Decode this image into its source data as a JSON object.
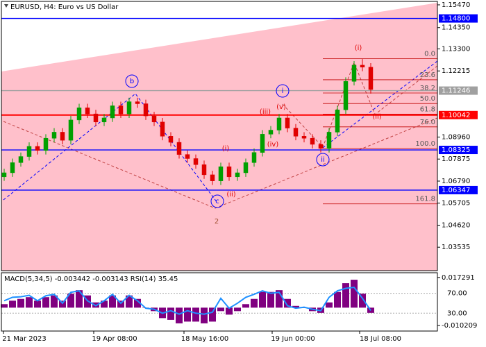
{
  "chart_data": {
    "type": "candlestick",
    "title": "EURUSD, H4:  Euro vs US Dollar",
    "ylim": [
      1.0238,
      1.1564
    ],
    "yticks": [
      {
        "value": 1.1547,
        "label": "1.15470"
      },
      {
        "value": 1.1435,
        "label": "1.14350"
      },
      {
        "value": 1.133,
        "label": "1.13300"
      },
      {
        "value": 1.12215,
        "label": "1.12215"
      },
      {
        "value": 1.0896,
        "label": "1.08960"
      },
      {
        "value": 1.07875,
        "label": "1.07875"
      },
      {
        "value": 1.0679,
        "label": "1.06790"
      },
      {
        "value": 1.05705,
        "label": "1.05705"
      },
      {
        "value": 1.0462,
        "label": "1.04620"
      },
      {
        "value": 1.03535,
        "label": "1.03535"
      }
    ],
    "time_labels": [
      "21 Mar 2023",
      "19 Apr 08:00",
      "18 May 16:00",
      "19 Jun 00:00",
      "18 Jul 08:00"
    ],
    "up_color": "#00a000",
    "down_color": "#e00000",
    "open": [
      1.07,
      1.072,
      1.077,
      1.08,
      1.085,
      1.083,
      1.089,
      1.092,
      1.088,
      1.098,
      1.104,
      1.101,
      1.097,
      1.099,
      1.105,
      1.101,
      1.107,
      1.106,
      1.1,
      1.097,
      1.09,
      1.087,
      1.081,
      1.079,
      1.076,
      1.071,
      1.068,
      1.075,
      1.07,
      1.072,
      1.077,
      1.082,
      1.091,
      1.093,
      1.099,
      1.094,
      1.09,
      1.089,
      1.086,
      1.084,
      1.092,
      1.103,
      1.117,
      1.125,
      1.124
    ],
    "high": [
      1.074,
      1.079,
      1.082,
      1.087,
      1.087,
      1.091,
      1.094,
      1.094,
      1.1,
      1.106,
      1.106,
      1.103,
      1.101,
      1.107,
      1.107,
      1.109,
      1.109,
      1.108,
      1.102,
      1.099,
      1.092,
      1.089,
      1.083,
      1.081,
      1.078,
      1.073,
      1.077,
      1.077,
      1.074,
      1.079,
      1.084,
      1.093,
      1.095,
      1.101,
      1.101,
      1.096,
      1.092,
      1.091,
      1.088,
      1.094,
      1.105,
      1.119,
      1.127,
      1.128,
      1.126
    ],
    "low": [
      1.068,
      1.07,
      1.075,
      1.078,
      1.081,
      1.081,
      1.087,
      1.086,
      1.086,
      1.096,
      1.099,
      1.095,
      1.095,
      1.097,
      1.099,
      1.099,
      1.104,
      1.098,
      1.095,
      1.088,
      1.085,
      1.079,
      1.077,
      1.074,
      1.069,
      1.066,
      1.066,
      1.068,
      1.068,
      1.07,
      1.075,
      1.08,
      1.089,
      1.091,
      1.092,
      1.088,
      1.087,
      1.084,
      1.082,
      1.082,
      1.09,
      1.101,
      1.115,
      1.122,
      1.111
    ],
    "close": [
      1.072,
      1.077,
      1.08,
      1.085,
      1.083,
      1.089,
      1.092,
      1.088,
      1.098,
      1.104,
      1.101,
      1.097,
      1.099,
      1.105,
      1.101,
      1.107,
      1.106,
      1.1,
      1.097,
      1.09,
      1.087,
      1.081,
      1.079,
      1.076,
      1.071,
      1.068,
      1.075,
      1.07,
      1.072,
      1.077,
      1.082,
      1.091,
      1.093,
      1.099,
      1.094,
      1.09,
      1.089,
      1.086,
      1.084,
      1.092,
      1.103,
      1.117,
      1.125,
      1.124,
      1.113
    ],
    "levels": [
      {
        "value": 1.148,
        "label": "1.14800",
        "color": "#0000ff"
      },
      {
        "value": 1.11246,
        "label": "1.11246",
        "color": "#a0a0a0"
      },
      {
        "value": 1.10042,
        "label": "1.10042",
        "color": "#ff0000"
      },
      {
        "value": 1.08325,
        "label": "1.08325",
        "color": "#0000ff"
      },
      {
        "value": 1.06347,
        "label": "1.06347",
        "color": "#0000ff"
      }
    ],
    "fibonacci": {
      "ratios": [
        "0.0",
        "23.6",
        "38.2",
        "50.0",
        "61.8",
        "76.0",
        "100.0",
        "161.8"
      ],
      "prices": [
        1.1282,
        1.1178,
        1.1113,
        1.1061,
        1.1009,
        1.0946,
        1.084,
        1.0567
      ],
      "color": "#c00000"
    },
    "wave_labels": [
      {
        "text": "b",
        "color": "#0000ff",
        "circled": true
      },
      {
        "text": "i",
        "color": "#0000ff",
        "circled": true
      },
      {
        "text": "ii",
        "color": "#0000ff",
        "circled": true
      },
      {
        "text": "c",
        "color": "#0000ff",
        "circled": true
      },
      {
        "text": "(i)",
        "color": "#e00000",
        "circled": false
      },
      {
        "text": "(ii)",
        "color": "#e00000",
        "circled": false
      },
      {
        "text": "(iii)",
        "color": "#e00000",
        "circled": false
      },
      {
        "text": "(iv)",
        "color": "#e00000",
        "circled": false
      },
      {
        "text": "(v)",
        "color": "#e00000",
        "circled": false
      },
      {
        "text": "(i)",
        "color": "#e00000",
        "circled": false
      },
      {
        "text": "(ii)",
        "color": "#e00000",
        "circled": false
      },
      {
        "text": "2",
        "color": "#a05030",
        "circled": false
      }
    ],
    "indicator_text": "MACD(5,34,5) -0.003442 -0.003143 RSI(14) 35.45",
    "macd": [
      0.002,
      0.004,
      0.005,
      0.006,
      0.004,
      0.006,
      0.007,
      0.004,
      0.008,
      0.01,
      0.007,
      0.003,
      0.004,
      0.007,
      0.004,
      0.007,
      0.005,
      0.0,
      -0.002,
      -0.006,
      -0.007,
      -0.009,
      -0.008,
      -0.008,
      -0.009,
      -0.008,
      -0.002,
      -0.004,
      -0.002,
      0.002,
      0.005,
      0.009,
      0.009,
      0.01,
      0.005,
      0.001,
      0.0,
      -0.002,
      -0.003,
      0.003,
      0.009,
      0.014,
      0.016,
      0.008,
      -0.003
    ],
    "macd_color": "#800080",
    "macd_ylim": [
      -0.0134,
      0.02
    ],
    "macd_yticks": [
      0.017291,
      -0.010209
    ],
    "rsi": [
      55,
      62,
      63,
      66,
      55,
      65,
      68,
      50,
      72,
      75,
      55,
      45,
      55,
      68,
      50,
      66,
      55,
      40,
      38,
      30,
      35,
      28,
      35,
      30,
      28,
      32,
      60,
      40,
      50,
      62,
      68,
      75,
      70,
      72,
      45,
      40,
      42,
      38,
      35,
      62,
      75,
      80,
      82,
      60,
      35.45
    ],
    "rsi_color": "#1e90ff",
    "rsi_ylim": [
      -5.9,
      111.4
    ],
    "rsi_yticks": [
      {
        "value": 70,
        "label": "70.00"
      },
      {
        "value": 30,
        "label": "30.00"
      }
    ]
  }
}
